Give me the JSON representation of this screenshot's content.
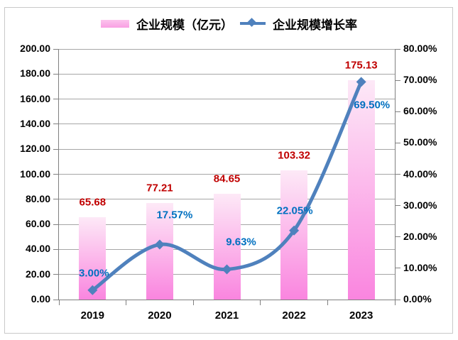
{
  "legend": {
    "bar_label": "企业规模（亿元）",
    "line_label": "企业规模增长率"
  },
  "chart_data": {
    "type": "bar",
    "categories": [
      "2019",
      "2020",
      "2021",
      "2022",
      "2023"
    ],
    "series": [
      {
        "name": "企业规模（亿元）",
        "type": "bar",
        "axis": "left",
        "values": [
          65.68,
          77.21,
          84.65,
          103.32,
          175.13
        ],
        "labels": [
          "65.68",
          "77.21",
          "84.65",
          "103.32",
          "175.13"
        ]
      },
      {
        "name": "企业规模增长率",
        "type": "line",
        "axis": "right",
        "values": [
          3.0,
          17.57,
          9.63,
          22.05,
          69.5
        ],
        "labels": [
          "3.00%",
          "17.57%",
          "9.63%",
          "22.05%",
          "69.50%"
        ]
      }
    ],
    "left_axis": {
      "min": 0,
      "max": 200,
      "step": 20,
      "tick_labels": [
        "0.00",
        "20.00",
        "40.00",
        "60.00",
        "80.00",
        "100.00",
        "120.00",
        "140.00",
        "160.00",
        "180.00",
        "200.00"
      ]
    },
    "right_axis": {
      "min": 0,
      "max": 80,
      "step": 10,
      "tick_labels": [
        "0.00%",
        "10.00%",
        "20.00%",
        "30.00%",
        "40.00%",
        "50.00%",
        "60.00%",
        "70.00%",
        "80.00%"
      ]
    },
    "grid": true,
    "legend_position": "top",
    "smooth_line": true,
    "colors": {
      "bar_gradient_top": "#FDE9F7",
      "bar_gradient_bottom": "#FA85DF",
      "legend_swatch_top": "#FCC4ED",
      "legend_swatch_bottom": "#F99FE3",
      "line": "#4F81BD",
      "bar_value_label": "#C00000",
      "line_value_label": "#0070C0",
      "gridline": "#A6A6A6",
      "axis": "#808080",
      "tick_text": "#000000",
      "frame_border": "#C9C9C9"
    }
  }
}
